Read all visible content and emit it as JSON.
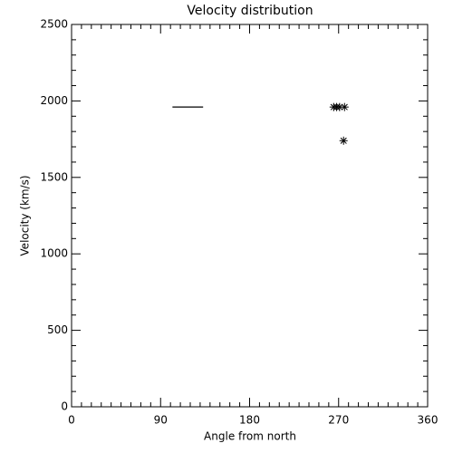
{
  "chart_data": {
    "type": "scatter",
    "title": "Velocity distribution",
    "x_label": "Angle from north",
    "y_label": "Velocity (km/s)",
    "xlim": [
      0,
      360
    ],
    "xticks": [
      0,
      90,
      180,
      270,
      360
    ],
    "xminorticks": [
      10,
      20,
      30,
      40,
      50,
      60,
      70,
      80,
      100,
      110,
      120,
      130,
      140,
      150,
      160,
      170,
      190,
      200,
      210,
      220,
      230,
      240,
      250,
      260,
      280,
      290,
      300,
      310,
      320,
      330,
      340,
      350
    ],
    "ylim": [
      0,
      2500
    ],
    "yticks": [
      0,
      500,
      1000,
      1500,
      2000,
      2500
    ],
    "yminorticks": [
      100,
      200,
      300,
      400,
      600,
      700,
      800,
      900,
      1100,
      1200,
      1300,
      1400,
      1600,
      1700,
      1800,
      1900,
      2100,
      2200,
      2300,
      2400
    ],
    "series": [
      {
        "marker": "asterisk",
        "color": "#000000",
        "x": [
          265,
          268,
          271,
          276,
          275
        ],
        "values": [
          1960,
          1960,
          1960,
          1960,
          1740
        ]
      },
      {
        "marker": "line",
        "color": "#000000",
        "x": [
          102,
          133
        ],
        "values": [
          1960,
          1960
        ]
      }
    ]
  }
}
